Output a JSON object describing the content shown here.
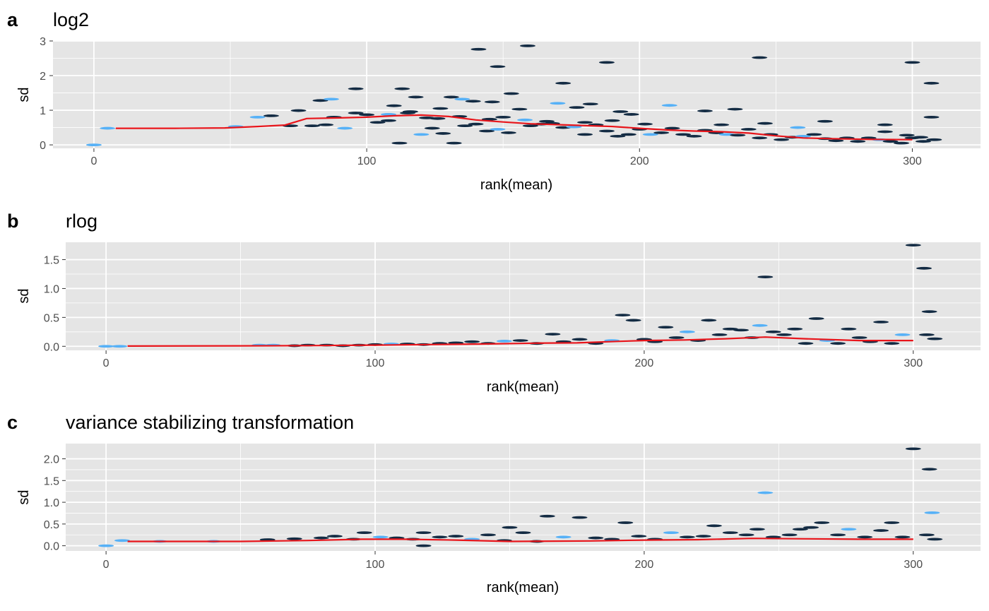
{
  "chart_data": [
    {
      "type": "heatmap",
      "panel_label": "a",
      "title": "log2",
      "xlabel": "rank(mean)",
      "ylabel": "sd",
      "xlim": [
        -15,
        325
      ],
      "ylim": [
        -0.1,
        3.0
      ],
      "x_ticks": [
        0,
        100,
        200,
        300
      ],
      "y_ticks": [
        0,
        1,
        2,
        3
      ],
      "grid": true,
      "colors": {
        "panel": "#e5e5e5",
        "grid": "#ffffff",
        "low_density": "#56b1f7",
        "high_density": "#132b43",
        "trend": "#e8151b"
      },
      "trend": [
        [
          8,
          0.48
        ],
        [
          30,
          0.48
        ],
        [
          48,
          0.49
        ],
        [
          60,
          0.53
        ],
        [
          70,
          0.57
        ],
        [
          78,
          0.76
        ],
        [
          90,
          0.78
        ],
        [
          100,
          0.8
        ],
        [
          110,
          0.84
        ],
        [
          120,
          0.86
        ],
        [
          130,
          0.82
        ],
        [
          140,
          0.72
        ],
        [
          150,
          0.66
        ],
        [
          160,
          0.61
        ],
        [
          175,
          0.57
        ],
        [
          190,
          0.53
        ],
        [
          200,
          0.48
        ],
        [
          210,
          0.43
        ],
        [
          220,
          0.4
        ],
        [
          230,
          0.38
        ],
        [
          240,
          0.34
        ],
        [
          250,
          0.26
        ],
        [
          260,
          0.2
        ],
        [
          270,
          0.18
        ],
        [
          285,
          0.16
        ],
        [
          300,
          0.15
        ]
      ],
      "points": [
        [
          0,
          0
        ],
        [
          5,
          0.48
        ],
        [
          52,
          0.53
        ],
        [
          60,
          0.8
        ],
        [
          65,
          0.84
        ],
        [
          72,
          0.55
        ],
        [
          75,
          0.99
        ],
        [
          80,
          0.55
        ],
        [
          85,
          0.58
        ],
        [
          88,
          0.8
        ],
        [
          92,
          0.48
        ],
        [
          96,
          0.92
        ],
        [
          100,
          0.87
        ],
        [
          104,
          0.65
        ],
        [
          108,
          0.7
        ],
        [
          112,
          0.05
        ],
        [
          116,
          0.96
        ],
        [
          120,
          0.3
        ],
        [
          124,
          0.48
        ],
        [
          128,
          0.33
        ],
        [
          132,
          0.05
        ],
        [
          136,
          0.55
        ],
        [
          140,
          0.6
        ],
        [
          144,
          0.4
        ],
        [
          148,
          0.45
        ],
        [
          152,
          0.35
        ],
        [
          156,
          1.03
        ],
        [
          160,
          0.55
        ],
        [
          164,
          0.6
        ],
        [
          168,
          0.62
        ],
        [
          172,
          0.5
        ],
        [
          176,
          0.52
        ],
        [
          180,
          0.3
        ],
        [
          184,
          0.58
        ],
        [
          188,
          0.4
        ],
        [
          192,
          0.25
        ],
        [
          196,
          0.3
        ],
        [
          200,
          0.45
        ],
        [
          204,
          0.3
        ],
        [
          208,
          0.35
        ],
        [
          212,
          0.48
        ],
        [
          216,
          0.3
        ],
        [
          220,
          0.25
        ],
        [
          224,
          0.42
        ],
        [
          228,
          0.35
        ],
        [
          232,
          0.3
        ],
        [
          236,
          0.28
        ],
        [
          240,
          0.45
        ],
        [
          244,
          0.2
        ],
        [
          248,
          0.3
        ],
        [
          252,
          0.15
        ],
        [
          256,
          0.22
        ],
        [
          260,
          0.25
        ],
        [
          264,
          0.3
        ],
        [
          268,
          0.18
        ],
        [
          272,
          0.12
        ],
        [
          276,
          0.2
        ],
        [
          280,
          0.1
        ],
        [
          284,
          0.2
        ],
        [
          288,
          0.15
        ],
        [
          292,
          0.1
        ],
        [
          296,
          0.05
        ],
        [
          300,
          0.2
        ],
        [
          304,
          0.1
        ],
        [
          308,
          0.15
        ],
        [
          83,
          1.28
        ],
        [
          87,
          1.32
        ],
        [
          96,
          1.62
        ],
        [
          110,
          1.13
        ],
        [
          113,
          1.62
        ],
        [
          118,
          1.38
        ],
        [
          127,
          1.05
        ],
        [
          131,
          1.38
        ],
        [
          135,
          1.32
        ],
        [
          139,
          1.26
        ],
        [
          141,
          2.76
        ],
        [
          146,
          1.24
        ],
        [
          148,
          2.26
        ],
        [
          153,
          1.48
        ],
        [
          159,
          2.86
        ],
        [
          170,
          1.2
        ],
        [
          172,
          1.78
        ],
        [
          177,
          1.08
        ],
        [
          182,
          1.18
        ],
        [
          188,
          2.38
        ],
        [
          193,
          0.96
        ],
        [
          197,
          0.88
        ],
        [
          211,
          1.14
        ],
        [
          224,
          0.98
        ],
        [
          235,
          1.03
        ],
        [
          244,
          2.52
        ],
        [
          300,
          2.38
        ],
        [
          307,
          1.78
        ],
        [
          307,
          0.8
        ],
        [
          108,
          0.88
        ],
        [
          115,
          0.92
        ],
        [
          122,
          0.78
        ],
        [
          126,
          0.76
        ],
        [
          134,
          0.82
        ],
        [
          145,
          0.74
        ],
        [
          150,
          0.8
        ],
        [
          158,
          0.72
        ],
        [
          166,
          0.68
        ],
        [
          180,
          0.65
        ],
        [
          190,
          0.7
        ],
        [
          202,
          0.6
        ],
        [
          230,
          0.58
        ],
        [
          246,
          0.62
        ],
        [
          258,
          0.5
        ],
        [
          268,
          0.68
        ],
        [
          290,
          0.58
        ],
        [
          290,
          0.38
        ],
        [
          298,
          0.28
        ],
        [
          303,
          0.22
        ]
      ]
    },
    {
      "type": "heatmap",
      "panel_label": "b",
      "title": "rlog",
      "xlabel": "rank(mean)",
      "ylabel": "sd",
      "xlim": [
        -15,
        325
      ],
      "ylim": [
        -0.07,
        1.8
      ],
      "x_ticks": [
        0,
        100,
        200,
        300
      ],
      "y_ticks": [
        0.0,
        0.5,
        1.0,
        1.5
      ],
      "y_tick_labels": [
        "0.0",
        "0.5",
        "1.0",
        "1.5"
      ],
      "grid": true,
      "colors": {
        "panel": "#e5e5e5",
        "grid": "#ffffff",
        "low_density": "#56b1f7",
        "high_density": "#132b43",
        "trend": "#e8151b"
      },
      "trend": [
        [
          8,
          0.005
        ],
        [
          50,
          0.008
        ],
        [
          75,
          0.012
        ],
        [
          100,
          0.02
        ],
        [
          120,
          0.03
        ],
        [
          140,
          0.04
        ],
        [
          160,
          0.055
        ],
        [
          175,
          0.06
        ],
        [
          190,
          0.085
        ],
        [
          200,
          0.1
        ],
        [
          215,
          0.11
        ],
        [
          230,
          0.13
        ],
        [
          245,
          0.16
        ],
        [
          260,
          0.13
        ],
        [
          280,
          0.1
        ],
        [
          300,
          0.1
        ]
      ],
      "points": [
        [
          0,
          0
        ],
        [
          5,
          0
        ],
        [
          57,
          0.02
        ],
        [
          62,
          0.02
        ],
        [
          70,
          0.01
        ],
        [
          75,
          0.02
        ],
        [
          82,
          0.02
        ],
        [
          88,
          0.01
        ],
        [
          94,
          0.02
        ],
        [
          100,
          0.03
        ],
        [
          106,
          0.04
        ],
        [
          112,
          0.04
        ],
        [
          118,
          0.03
        ],
        [
          124,
          0.05
        ],
        [
          130,
          0.06
        ],
        [
          136,
          0.08
        ],
        [
          142,
          0.05
        ],
        [
          148,
          0.09
        ],
        [
          154,
          0.1
        ],
        [
          160,
          0.05
        ],
        [
          166,
          0.21
        ],
        [
          170,
          0.08
        ],
        [
          176,
          0.12
        ],
        [
          182,
          0.05
        ],
        [
          188,
          0.1
        ],
        [
          192,
          0.54
        ],
        [
          196,
          0.45
        ],
        [
          200,
          0.12
        ],
        [
          204,
          0.08
        ],
        [
          208,
          0.33
        ],
        [
          212,
          0.15
        ],
        [
          216,
          0.25
        ],
        [
          220,
          0.1
        ],
        [
          224,
          0.45
        ],
        [
          228,
          0.2
        ],
        [
          232,
          0.3
        ],
        [
          236,
          0.28
        ],
        [
          240,
          0.15
        ],
        [
          243,
          0.36
        ],
        [
          245,
          1.2
        ],
        [
          248,
          0.25
        ],
        [
          252,
          0.2
        ],
        [
          256,
          0.3
        ],
        [
          260,
          0.05
        ],
        [
          264,
          0.48
        ],
        [
          268,
          0.1
        ],
        [
          272,
          0.05
        ],
        [
          276,
          0.3
        ],
        [
          280,
          0.15
        ],
        [
          284,
          0.08
        ],
        [
          288,
          0.42
        ],
        [
          292,
          0.05
        ],
        [
          296,
          0.2
        ],
        [
          300,
          1.75
        ],
        [
          304,
          1.35
        ],
        [
          306,
          0.6
        ],
        [
          305,
          0.2
        ],
        [
          308,
          0.13
        ]
      ]
    },
    {
      "type": "heatmap",
      "panel_label": "c",
      "title": "variance stabilizing transformation",
      "xlabel": "rank(mean)",
      "ylabel": "sd",
      "xlim": [
        -15,
        325
      ],
      "ylim": [
        -0.12,
        2.35
      ],
      "x_ticks": [
        0,
        100,
        200,
        300
      ],
      "y_ticks": [
        0.0,
        0.5,
        1.0,
        1.5,
        2.0
      ],
      "y_tick_labels": [
        "0.0",
        "0.5",
        "1.0",
        "1.5",
        "2.0"
      ],
      "grid": true,
      "colors": {
        "panel": "#e5e5e5",
        "grid": "#ffffff",
        "low_density": "#56b1f7",
        "high_density": "#132b43",
        "trend": "#e8151b"
      },
      "trend": [
        [
          8,
          0.1
        ],
        [
          50,
          0.1
        ],
        [
          75,
          0.12
        ],
        [
          95,
          0.15
        ],
        [
          110,
          0.15
        ],
        [
          130,
          0.13
        ],
        [
          150,
          0.1
        ],
        [
          180,
          0.11
        ],
        [
          200,
          0.13
        ],
        [
          220,
          0.14
        ],
        [
          240,
          0.17
        ],
        [
          260,
          0.16
        ],
        [
          280,
          0.15
        ],
        [
          300,
          0.15
        ]
      ],
      "points": [
        [
          0,
          0
        ],
        [
          6,
          0.12
        ],
        [
          20,
          0.1
        ],
        [
          40,
          0.1
        ],
        [
          60,
          0.14
        ],
        [
          70,
          0.16
        ],
        [
          80,
          0.18
        ],
        [
          85,
          0.22
        ],
        [
          92,
          0.15
        ],
        [
          96,
          0.3
        ],
        [
          102,
          0.2
        ],
        [
          108,
          0.18
        ],
        [
          114,
          0.15
        ],
        [
          118,
          0.3
        ],
        [
          118,
          0.0
        ],
        [
          124,
          0.2
        ],
        [
          130,
          0.22
        ],
        [
          136,
          0.15
        ],
        [
          142,
          0.25
        ],
        [
          148,
          0.12
        ],
        [
          150,
          0.42
        ],
        [
          155,
          0.3
        ],
        [
          160,
          0.1
        ],
        [
          164,
          0.68
        ],
        [
          170,
          0.2
        ],
        [
          176,
          0.65
        ],
        [
          182,
          0.18
        ],
        [
          188,
          0.15
        ],
        [
          193,
          0.53
        ],
        [
          198,
          0.22
        ],
        [
          204,
          0.15
        ],
        [
          210,
          0.3
        ],
        [
          216,
          0.2
        ],
        [
          222,
          0.22
        ],
        [
          226,
          0.46
        ],
        [
          232,
          0.3
        ],
        [
          238,
          0.25
        ],
        [
          242,
          0.38
        ],
        [
          245,
          1.22
        ],
        [
          248,
          0.2
        ],
        [
          254,
          0.25
        ],
        [
          258,
          0.38
        ],
        [
          262,
          0.42
        ],
        [
          266,
          0.53
        ],
        [
          272,
          0.25
        ],
        [
          276,
          0.38
        ],
        [
          282,
          0.2
        ],
        [
          288,
          0.35
        ],
        [
          292,
          0.53
        ],
        [
          296,
          0.2
        ],
        [
          300,
          2.23
        ],
        [
          306,
          1.76
        ],
        [
          307,
          0.76
        ],
        [
          305,
          0.25
        ],
        [
          308,
          0.15
        ]
      ]
    }
  ]
}
